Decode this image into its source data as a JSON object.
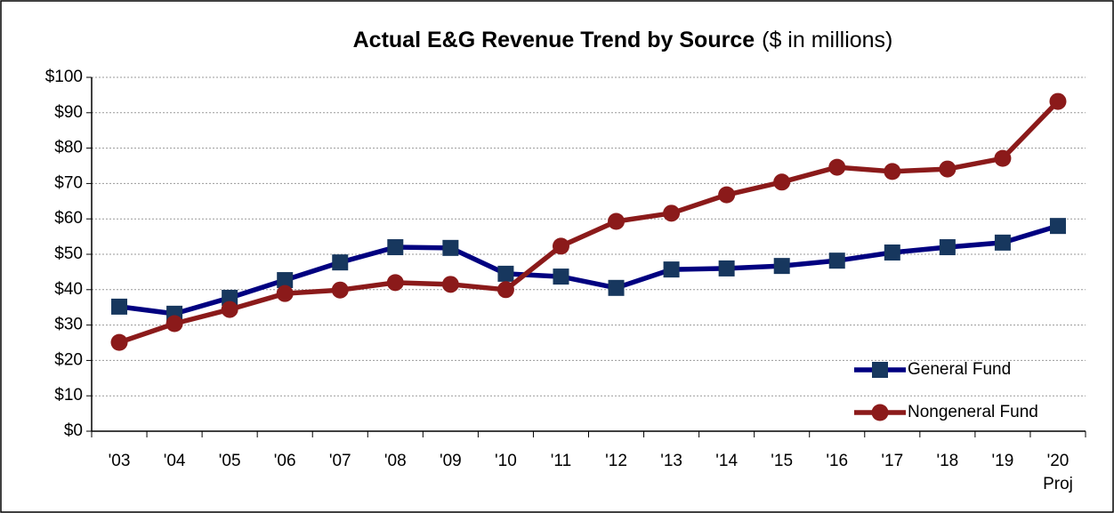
{
  "chart_data": {
    "type": "line",
    "title": "Actual E&G Revenue Trend by Source",
    "subtitle": "($ in millions)",
    "categories": [
      "'03",
      "'04",
      "'05",
      "'06",
      "'07",
      "'08",
      "'09",
      "'10",
      "'11",
      "'12",
      "'13",
      "'14",
      "'15",
      "'16",
      "'17",
      "'18",
      "'19",
      "'20"
    ],
    "annotations": [
      "Proj"
    ],
    "series": [
      {
        "name": "General Fund",
        "color": "#000080",
        "marker_color": "#17375e",
        "marker": "square",
        "values": [
          35.2,
          33.2,
          37.7,
          42.7,
          47.7,
          52,
          51.8,
          44.5,
          43.7,
          40.5,
          45.7,
          46,
          46.7,
          48.2,
          50.5,
          52,
          53.3,
          58
        ]
      },
      {
        "name": "Nongeneral Fund",
        "color": "#8b1a1a",
        "marker_color": "#8b1a1a",
        "marker": "circle",
        "values": [
          25.1,
          30.4,
          34.4,
          38.9,
          39.9,
          42,
          41.5,
          40,
          52.3,
          59.3,
          61.6,
          66.8,
          70.4,
          74.6,
          73.4,
          74.1,
          77.1,
          93.2
        ]
      }
    ],
    "ylim": [
      0,
      100
    ],
    "yticks": [
      {
        "value": 0,
        "label": "$0"
      },
      {
        "value": 10,
        "label": "$10"
      },
      {
        "value": 20,
        "label": "$20"
      },
      {
        "value": 30,
        "label": "$30"
      },
      {
        "value": 40,
        "label": "$40"
      },
      {
        "value": 50,
        "label": "$50"
      },
      {
        "value": 60,
        "label": "$60"
      },
      {
        "value": 70,
        "label": "$70"
      },
      {
        "value": 80,
        "label": "$80"
      },
      {
        "value": 90,
        "label": "$90"
      },
      {
        "value": 100,
        "label": "$100"
      }
    ],
    "grid": true,
    "legend": "lower right"
  }
}
